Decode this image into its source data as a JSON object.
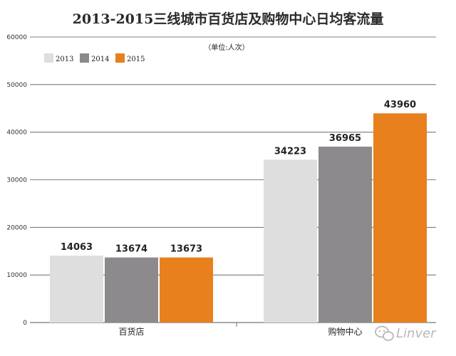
{
  "chart_data": {
    "type": "bar",
    "title": "2013-2015三线城市百货店及购物中心日均客流量",
    "unit": "（单位:人次）",
    "categories": [
      "百货店",
      "购物中心"
    ],
    "series": [
      {
        "name": "2013",
        "color": "#dedede",
        "values": [
          14063,
          34223
        ]
      },
      {
        "name": "2014",
        "color": "#8c8a8c",
        "values": [
          13674,
          36965
        ]
      },
      {
        "name": "2015",
        "color": "#e8801d",
        "values": [
          13673,
          43960
        ]
      }
    ],
    "yticks": [
      0,
      10000,
      20000,
      30000,
      40000,
      50000,
      60000
    ],
    "ylim": [
      0,
      60000
    ],
    "grid": true,
    "legend": "top-left"
  },
  "watermark": {
    "icon": "wechat-icon",
    "text": "Linver"
  }
}
